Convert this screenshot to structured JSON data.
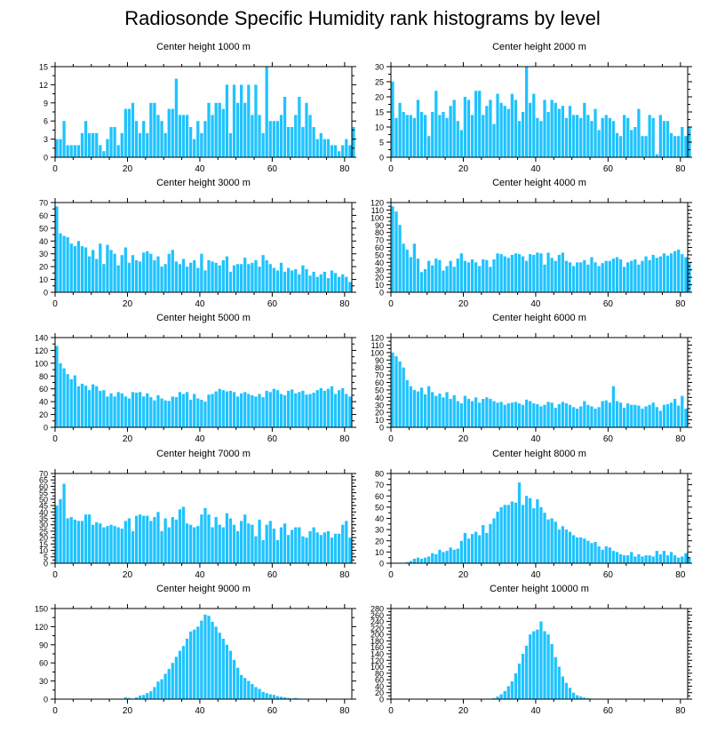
{
  "title": "Radiosonde Specific Humidity rank histograms by level",
  "colors": {
    "bar": "#1ec3ff",
    "axis": "#000000"
  },
  "chart_data": [
    {
      "type": "bar",
      "title": "Center height 1000 m",
      "xlim": [
        0,
        82
      ],
      "ylim": [
        0,
        15
      ],
      "xticks": [
        0,
        20,
        40,
        60,
        80
      ],
      "yticks": [
        0,
        3,
        6,
        9,
        12,
        15
      ],
      "values": [
        3,
        3,
        6,
        2,
        2,
        2,
        2,
        4,
        6,
        4,
        4,
        4,
        2,
        1,
        3,
        5,
        5,
        2,
        4,
        8,
        8,
        9,
        6,
        4,
        6,
        4,
        9,
        9,
        7,
        6,
        4,
        8,
        8,
        13,
        7,
        7,
        7,
        5,
        3,
        6,
        4,
        6,
        9,
        7,
        9,
        9,
        8,
        12,
        4,
        12,
        9,
        12,
        9,
        12,
        7,
        12,
        7,
        4,
        15,
        6,
        6,
        6,
        7,
        10,
        5,
        5,
        7,
        10,
        5,
        9,
        7,
        5,
        3,
        4,
        3,
        3,
        2,
        2,
        1,
        2,
        3,
        2,
        5
      ]
    },
    {
      "type": "bar",
      "title": "Center height 2000 m",
      "xlim": [
        0,
        82
      ],
      "ylim": [
        0,
        30
      ],
      "xticks": [
        0,
        20,
        40,
        60,
        80
      ],
      "yticks": [
        0,
        5,
        10,
        15,
        20,
        25,
        30
      ],
      "values": [
        25,
        13,
        18,
        15,
        14,
        14,
        13,
        19,
        15,
        14,
        7,
        15,
        22,
        14,
        15,
        13,
        17,
        19,
        12,
        9,
        20,
        19,
        14,
        22,
        22,
        14,
        17,
        19,
        11,
        21,
        18,
        17,
        16,
        21,
        19,
        12,
        15,
        30,
        18,
        21,
        13,
        12,
        19,
        15,
        19,
        18,
        16,
        17,
        13,
        17,
        14,
        14,
        13,
        18,
        14,
        12,
        16,
        9,
        13,
        14,
        13,
        12,
        8,
        7,
        14,
        13,
        9,
        10,
        16,
        7,
        7,
        14,
        13,
        1,
        14,
        12,
        12,
        8,
        7,
        7,
        10,
        7,
        10
      ]
    },
    {
      "type": "bar",
      "title": "Center height 3000 m",
      "xlim": [
        0,
        82
      ],
      "ylim": [
        0,
        70
      ],
      "xticks": [
        0,
        20,
        40,
        60,
        80
      ],
      "yticks": [
        0,
        10,
        20,
        30,
        40,
        50,
        60,
        70
      ],
      "values": [
        67,
        46,
        44,
        43,
        38,
        36,
        40,
        36,
        35,
        28,
        33,
        26,
        38,
        22,
        37,
        33,
        30,
        21,
        29,
        35,
        23,
        29,
        25,
        24,
        31,
        32,
        30,
        25,
        28,
        20,
        22,
        30,
        33,
        24,
        22,
        26,
        20,
        23,
        25,
        19,
        30,
        17,
        25,
        24,
        23,
        21,
        25,
        28,
        16,
        21,
        22,
        22,
        27,
        22,
        23,
        25,
        20,
        29,
        25,
        22,
        19,
        17,
        23,
        16,
        19,
        17,
        18,
        14,
        21,
        18,
        13,
        16,
        12,
        14,
        16,
        11,
        17,
        15,
        12,
        14,
        12,
        8
      ]
    },
    {
      "type": "bar",
      "title": "Center height 4000 m",
      "xlim": [
        0,
        82
      ],
      "ylim": [
        0,
        120
      ],
      "xticks": [
        0,
        20,
        40,
        60,
        80
      ],
      "yticks": [
        0,
        10,
        20,
        30,
        40,
        50,
        60,
        70,
        80,
        90,
        100,
        110,
        120
      ],
      "values": [
        115,
        108,
        90,
        65,
        57,
        47,
        65,
        45,
        27,
        31,
        42,
        36,
        45,
        43,
        29,
        35,
        42,
        34,
        45,
        52,
        42,
        40,
        44,
        40,
        35,
        44,
        43,
        34,
        44,
        52,
        51,
        48,
        46,
        50,
        52,
        51,
        48,
        42,
        51,
        50,
        53,
        52,
        37,
        53,
        46,
        42,
        50,
        53,
        42,
        40,
        35,
        40,
        40,
        43,
        37,
        47,
        40,
        35,
        39,
        42,
        42,
        45,
        47,
        44,
        34,
        40,
        42,
        44,
        37,
        42,
        48,
        43,
        50,
        46,
        48,
        52,
        49,
        52,
        55,
        57,
        51,
        47,
        40
      ]
    },
    {
      "type": "bar",
      "title": "Center height 5000 m",
      "xlim": [
        0,
        82
      ],
      "ylim": [
        0,
        140
      ],
      "xticks": [
        0,
        20,
        40,
        60,
        80
      ],
      "yticks": [
        0,
        20,
        40,
        60,
        80,
        100,
        120,
        140
      ],
      "values": [
        127,
        100,
        92,
        83,
        75,
        81,
        64,
        68,
        65,
        58,
        67,
        64,
        57,
        58,
        48,
        53,
        48,
        55,
        53,
        48,
        45,
        55,
        54,
        55,
        48,
        53,
        47,
        42,
        50,
        45,
        42,
        41,
        48,
        47,
        55,
        52,
        55,
        43,
        52,
        45,
        43,
        40,
        51,
        52,
        56,
        60,
        58,
        56,
        57,
        55,
        48,
        53,
        55,
        52,
        50,
        48,
        52,
        47,
        57,
        55,
        60,
        58,
        52,
        50,
        57,
        59,
        53,
        55,
        57,
        51,
        52,
        54,
        58,
        61,
        57,
        60,
        64,
        52,
        58,
        61,
        52,
        48
      ]
    },
    {
      "type": "bar",
      "title": "Center height 6000 m",
      "xlim": [
        0,
        82
      ],
      "ylim": [
        0,
        120
      ],
      "xticks": [
        0,
        20,
        40,
        60,
        80
      ],
      "yticks": [
        0,
        10,
        20,
        30,
        40,
        50,
        60,
        70,
        80,
        90,
        100,
        110,
        120
      ],
      "values": [
        100,
        95,
        88,
        80,
        63,
        55,
        50,
        48,
        53,
        44,
        55,
        47,
        42,
        45,
        40,
        47,
        38,
        43,
        35,
        32,
        42,
        38,
        35,
        40,
        33,
        38,
        40,
        38,
        35,
        33,
        34,
        30,
        32,
        33,
        34,
        32,
        30,
        37,
        35,
        32,
        31,
        28,
        30,
        34,
        33,
        26,
        31,
        34,
        32,
        30,
        27,
        25,
        28,
        35,
        30,
        28,
        25,
        27,
        35,
        36,
        33,
        55,
        35,
        33,
        26,
        32,
        30,
        30,
        29,
        25,
        28,
        30,
        33,
        27,
        22,
        30,
        31,
        33,
        38,
        29,
        42,
        25
      ]
    },
    {
      "type": "bar",
      "title": "Center height 7000 m",
      "xlim": [
        0,
        82
      ],
      "ylim": [
        0,
        70
      ],
      "xticks": [
        0,
        20,
        40,
        60,
        80
      ],
      "yticks": [
        0,
        5,
        10,
        15,
        20,
        25,
        30,
        35,
        40,
        45,
        50,
        55,
        60,
        65,
        70
      ],
      "values": [
        45,
        50,
        62,
        35,
        36,
        34,
        33,
        33,
        38,
        38,
        30,
        32,
        31,
        28,
        29,
        30,
        29,
        28,
        27,
        33,
        35,
        25,
        37,
        38,
        37,
        37,
        33,
        36,
        40,
        25,
        35,
        28,
        36,
        34,
        42,
        44,
        31,
        30,
        28,
        29,
        38,
        43,
        38,
        28,
        36,
        30,
        28,
        39,
        35,
        30,
        25,
        33,
        38,
        31,
        30,
        21,
        34,
        18,
        30,
        33,
        27,
        18,
        28,
        31,
        22,
        26,
        28,
        28,
        21,
        20,
        25,
        28,
        24,
        22,
        24,
        25,
        20,
        23,
        23,
        30,
        33,
        20
      ]
    },
    {
      "type": "bar",
      "title": "Center height 8000 m",
      "xlim": [
        0,
        82
      ],
      "ylim": [
        0,
        80
      ],
      "xticks": [
        0,
        20,
        40,
        60,
        80
      ],
      "yticks": [
        0,
        10,
        20,
        30,
        40,
        50,
        60,
        70,
        80
      ],
      "values": [
        0,
        0,
        0,
        0,
        1,
        2,
        4,
        5,
        4,
        5,
        6,
        9,
        8,
        12,
        10,
        11,
        14,
        12,
        13,
        20,
        27,
        22,
        26,
        28,
        25,
        34,
        27,
        35,
        40,
        46,
        50,
        52,
        52,
        55,
        54,
        72,
        52,
        60,
        58,
        49,
        57,
        50,
        45,
        39,
        40,
        37,
        30,
        33,
        30,
        28,
        25,
        23,
        23,
        22,
        20,
        18,
        19,
        15,
        12,
        15,
        14,
        11,
        10,
        8,
        7,
        7,
        10,
        6,
        8,
        6,
        7,
        7,
        6,
        11,
        8,
        11,
        7,
        10,
        7,
        5,
        6,
        9,
        5
      ]
    },
    {
      "type": "bar",
      "title": "Center height 9000 m",
      "xlim": [
        0,
        82
      ],
      "ylim": [
        0,
        150
      ],
      "xticks": [
        0,
        20,
        40,
        60,
        80
      ],
      "yticks": [
        0,
        30,
        60,
        90,
        120,
        150
      ],
      "values": [
        0,
        0,
        0,
        0,
        0,
        0,
        0,
        0,
        0,
        0,
        0,
        0,
        0,
        0,
        0,
        0,
        0,
        0,
        0,
        3,
        2,
        1,
        3,
        6,
        7,
        10,
        13,
        20,
        29,
        33,
        42,
        50,
        60,
        70,
        80,
        88,
        100,
        112,
        115,
        120,
        130,
        140,
        138,
        128,
        120,
        110,
        100,
        90,
        80,
        65,
        52,
        40,
        35,
        30,
        25,
        20,
        17,
        12,
        10,
        8,
        7,
        5,
        4,
        3,
        2,
        1,
        2,
        1,
        0,
        0,
        0,
        0,
        0,
        0,
        0,
        0,
        0,
        0,
        0,
        0,
        0,
        0
      ]
    },
    {
      "type": "bar",
      "title": "Center height 10000 m",
      "xlim": [
        0,
        82
      ],
      "ylim": [
        0,
        280
      ],
      "xticks": [
        0,
        20,
        40,
        60,
        80
      ],
      "yticks": [
        0,
        20,
        40,
        60,
        80,
        100,
        120,
        140,
        160,
        180,
        200,
        220,
        240,
        260,
        280
      ],
      "values": [
        0,
        0,
        0,
        0,
        0,
        0,
        0,
        0,
        0,
        0,
        0,
        0,
        0,
        0,
        0,
        0,
        0,
        0,
        0,
        0,
        0,
        0,
        0,
        0,
        0,
        0,
        0,
        0,
        3,
        8,
        15,
        25,
        40,
        55,
        80,
        110,
        140,
        165,
        200,
        210,
        215,
        240,
        210,
        200,
        170,
        130,
        100,
        70,
        50,
        35,
        20,
        12,
        8,
        5,
        3,
        1,
        1,
        0,
        0,
        0,
        0,
        0,
        0,
        0,
        0,
        0,
        0,
        0,
        0,
        0,
        0,
        0,
        0,
        0,
        0,
        0,
        0,
        0,
        0,
        0,
        0,
        0
      ]
    }
  ]
}
